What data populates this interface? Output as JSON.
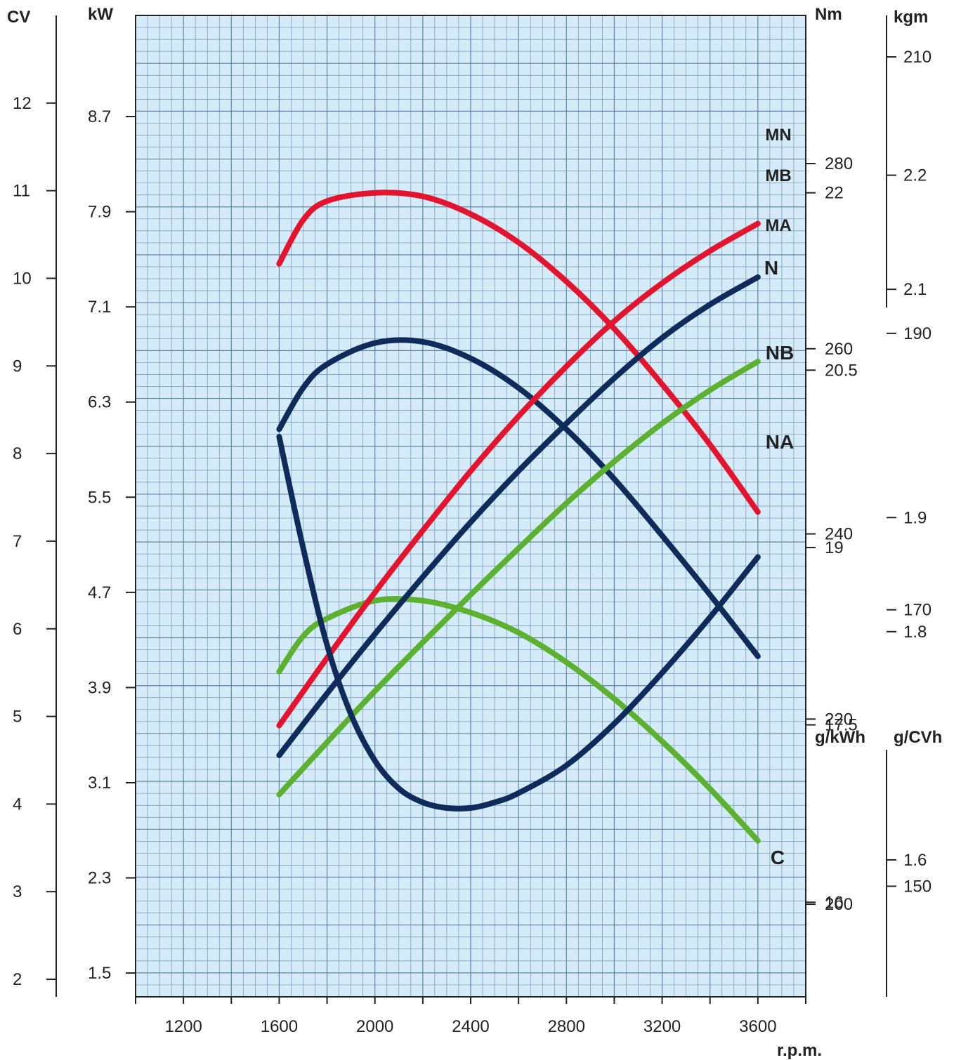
{
  "chart_data": {
    "type": "line",
    "background_color": "#d6ebf8",
    "grid": true,
    "x_axis": {
      "label": "r.p.m.",
      "range": [
        1000,
        3800
      ],
      "ticks": [
        1200,
        1600,
        2000,
        2400,
        2800,
        3200,
        3600
      ]
    },
    "axes": {
      "cv": {
        "unit": "CV",
        "range": [
          1.8,
          13
        ],
        "ticks": [
          "2",
          "3",
          "4",
          "5",
          "6",
          "7",
          "8",
          "9",
          "10",
          "11",
          "12"
        ]
      },
      "kw": {
        "unit": "kW",
        "range": [
          1.3,
          9.55
        ],
        "ticks": [
          "1.5",
          "2.3",
          "3.1",
          "3.9",
          "4.7",
          "5.5",
          "6.3",
          "7.1",
          "7.9",
          "8.7"
        ]
      },
      "nm": {
        "unit": "Nm",
        "range": [
          15.2,
          23.5
        ],
        "ticks": [
          "16",
          "17.5",
          "19",
          "20.5",
          "22"
        ]
      },
      "kgm": {
        "unit": "kgm",
        "range": [
          1.48,
          2.34
        ],
        "ticks": [
          "1.6",
          "1.8",
          "1.9",
          "2.1",
          "2.2"
        ]
      },
      "gkwh": {
        "unit": "g/kWh",
        "range": [
          190,
          296
        ],
        "ticks": [
          "200",
          "220",
          "240",
          "260",
          "280"
        ]
      },
      "gcvh": {
        "unit": "g/CVh",
        "range": [
          142,
          213
        ],
        "ticks": [
          "150",
          "170",
          "190",
          "210"
        ]
      }
    },
    "series": [
      {
        "name": "MN",
        "axis": "nm",
        "color": "#e3142d",
        "x": [
          1600,
          1700,
          1800,
          2000,
          2200,
          2400,
          2600,
          2800,
          3000,
          3200,
          3400,
          3600
        ],
        "y": [
          21.4,
          21.77,
          21.93,
          22.0,
          21.97,
          21.82,
          21.58,
          21.25,
          20.85,
          20.38,
          19.87,
          19.3
        ]
      },
      {
        "name": "MB",
        "axis": "nm",
        "color": "#0f2b5b",
        "x": [
          1600,
          1700,
          1800,
          2000,
          2200,
          2400,
          2600,
          2800,
          3000,
          3200,
          3400,
          3600
        ],
        "y": [
          20.0,
          20.35,
          20.55,
          20.73,
          20.74,
          20.6,
          20.35,
          20.0,
          19.58,
          19.1,
          18.6,
          18.08
        ]
      },
      {
        "name": "MA",
        "axis": "nm",
        "color": "#5db130",
        "x": [
          1600,
          1700,
          1800,
          2000,
          2200,
          2400,
          2600,
          2800,
          3000,
          3200,
          3400,
          3600
        ],
        "y": [
          17.95,
          18.25,
          18.4,
          18.55,
          18.55,
          18.45,
          18.28,
          18.03,
          17.72,
          17.36,
          16.96,
          16.52
        ]
      },
      {
        "name": "N",
        "axis": "kw",
        "color": "#e3142d",
        "x": [
          1600,
          1800,
          2000,
          2200,
          2400,
          2600,
          2800,
          3000,
          3200,
          3400,
          3600
        ],
        "y": [
          3.58,
          4.15,
          4.7,
          5.22,
          5.72,
          6.18,
          6.6,
          6.98,
          7.3,
          7.57,
          7.8
        ]
      },
      {
        "name": "NB",
        "axis": "kw",
        "color": "#0f2b5b",
        "x": [
          1600,
          1800,
          2000,
          2200,
          2400,
          2600,
          2800,
          3000,
          3200,
          3400,
          3600
        ],
        "y": [
          3.33,
          3.85,
          4.35,
          4.83,
          5.29,
          5.72,
          6.12,
          6.5,
          6.84,
          7.12,
          7.35
        ]
      },
      {
        "name": "NA",
        "axis": "kw",
        "color": "#5db130",
        "x": [
          1600,
          1800,
          2000,
          2200,
          2400,
          2600,
          2800,
          3000,
          3200,
          3400,
          3600
        ],
        "y": [
          3.0,
          3.44,
          3.87,
          4.28,
          4.68,
          5.07,
          5.45,
          5.8,
          6.12,
          6.4,
          6.64
        ]
      },
      {
        "name": "C",
        "axis": "gkwh",
        "color": "#0f2b5b",
        "x": [
          1600,
          1700,
          1800,
          1900,
          2000,
          2100,
          2200,
          2300,
          2400,
          2500,
          2600,
          2800,
          3000,
          3200,
          3400,
          3600
        ],
        "y": [
          250.5,
          238.5,
          228.0,
          220.5,
          215.5,
          212.5,
          211.0,
          210.4,
          210.4,
          211.0,
          212.0,
          215.0,
          219.5,
          225.0,
          231.0,
          237.5
        ]
      }
    ]
  }
}
